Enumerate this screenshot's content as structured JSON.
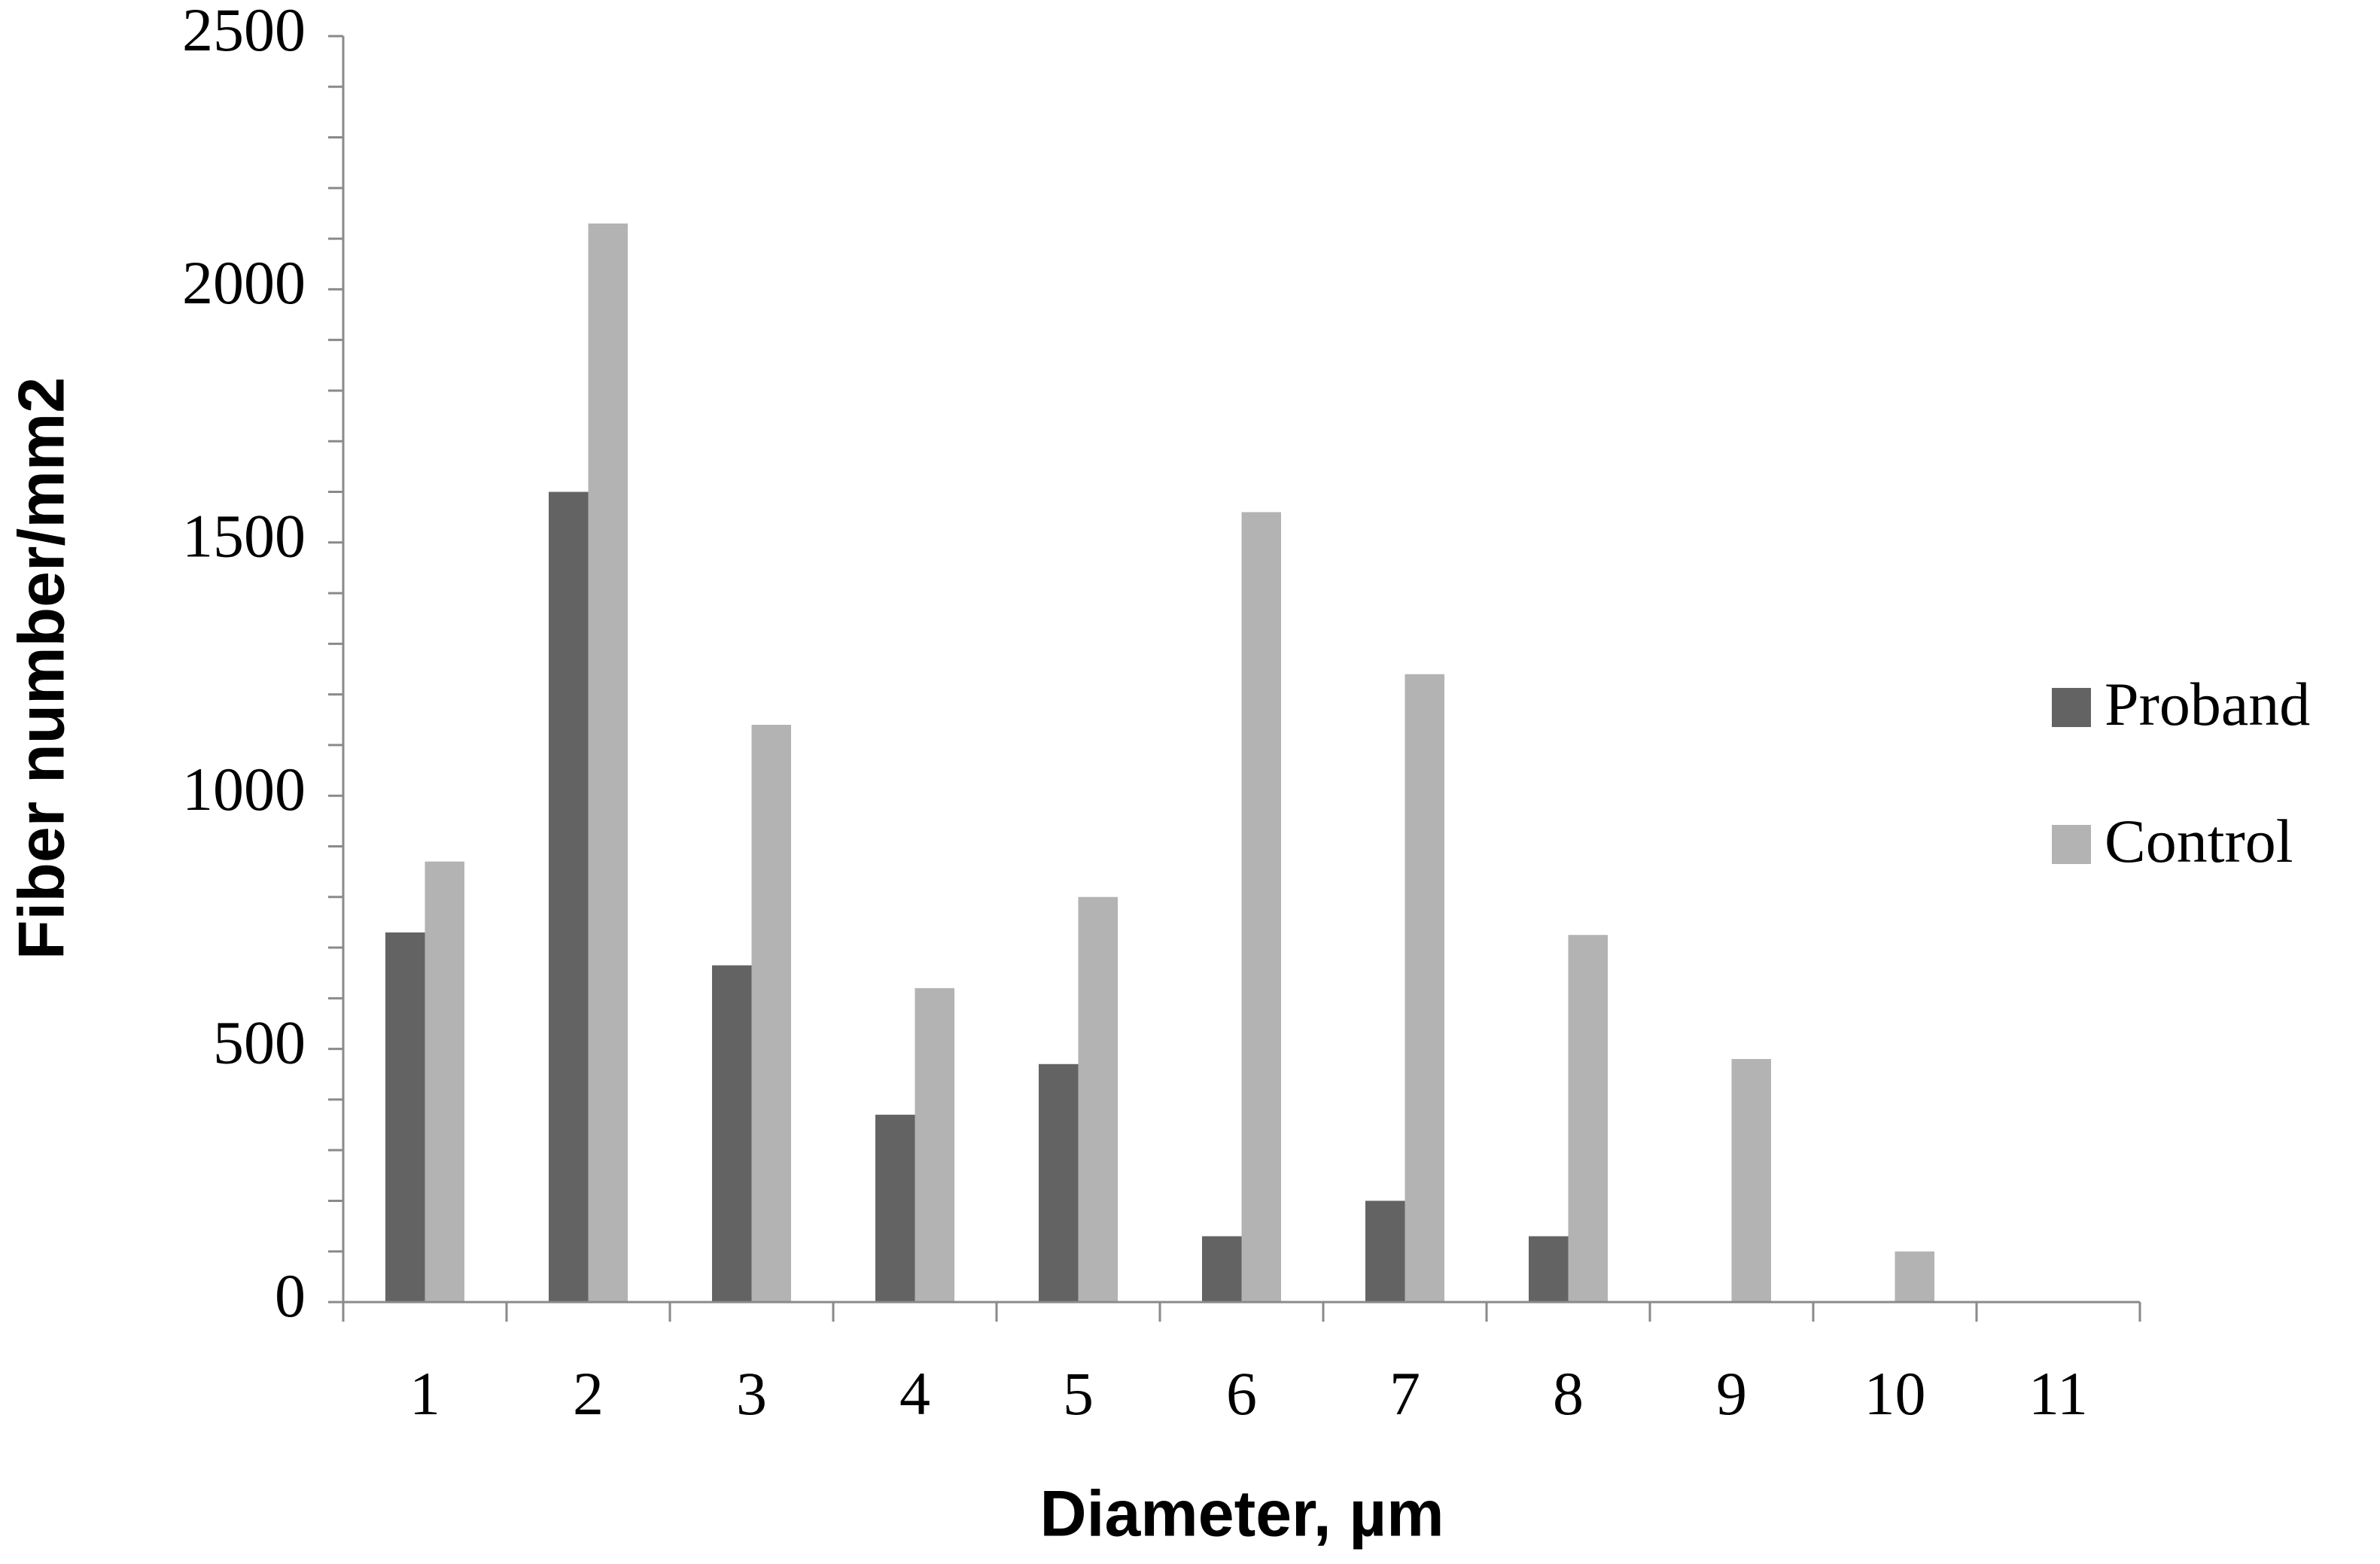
{
  "chart_data": {
    "type": "bar",
    "x_label": "Diameter, µm",
    "y_label": "Fiber number/mm2",
    "categories": [
      "1",
      "2",
      "3",
      "4",
      "5",
      "6",
      "7",
      "8",
      "9",
      "10",
      "11"
    ],
    "series": [
      {
        "name": "Proband",
        "color": "#636363",
        "values": [
          730,
          1600,
          665,
          370,
          470,
          130,
          200,
          130,
          0,
          0,
          0
        ]
      },
      {
        "name": "Control",
        "color": "#b3b3b3",
        "values": [
          870,
          2130,
          1140,
          620,
          800,
          1560,
          1240,
          725,
          480,
          100,
          0
        ]
      }
    ],
    "ylim": [
      0,
      2500
    ],
    "yticks": [
      0,
      500,
      1000,
      1500,
      2000,
      2500
    ],
    "yticks_minor": [
      100,
      200,
      300,
      400,
      600,
      700,
      800,
      900,
      1100,
      1200,
      1300,
      1400,
      1600,
      1700,
      1800,
      1900,
      2100,
      2200,
      2300,
      2400
    ],
    "grid": false,
    "legend": "right"
  }
}
